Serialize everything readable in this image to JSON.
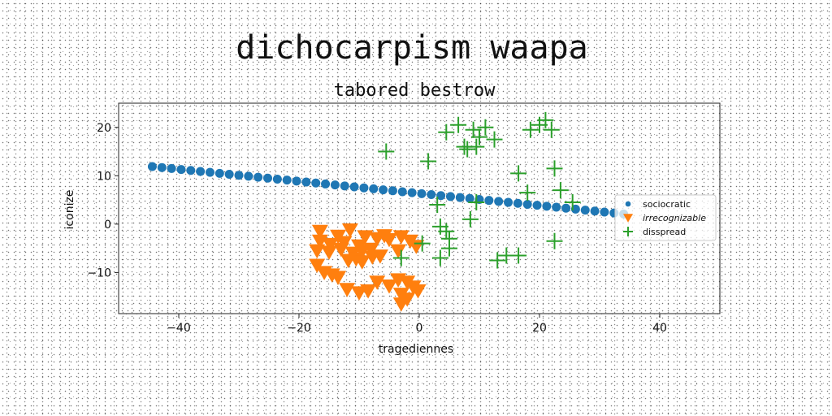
{
  "chart_data": {
    "type": "scatter",
    "title": "dichocarpism waapa",
    "subtitle": "tabored bestrow",
    "xlabel": "tragediennes",
    "ylabel": "iconize",
    "xlim": [
      -50,
      50
    ],
    "ylim": [
      -18.5,
      25
    ],
    "xticks": [
      -40,
      -20,
      0,
      20,
      40
    ],
    "yticks": [
      -10,
      0,
      10,
      20
    ],
    "grid": false,
    "legend_position": "center-right",
    "series": [
      {
        "name": "sociocratic",
        "marker": "circle",
        "color": "#1f77b4",
        "points": [
          [
            -44.4,
            11.9
          ],
          [
            -42.8,
            11.7
          ],
          [
            -41.2,
            11.5
          ],
          [
            -39.6,
            11.3
          ],
          [
            -38.0,
            11.1
          ],
          [
            -36.4,
            10.9
          ],
          [
            -34.8,
            10.7
          ],
          [
            -33.2,
            10.5
          ],
          [
            -31.6,
            10.3
          ],
          [
            -30.0,
            10.1
          ],
          [
            -28.4,
            9.9
          ],
          [
            -26.8,
            9.7
          ],
          [
            -25.2,
            9.5
          ],
          [
            -23.6,
            9.3
          ],
          [
            -22.0,
            9.1
          ],
          [
            -20.4,
            8.9
          ],
          [
            -18.8,
            8.7
          ],
          [
            -17.2,
            8.5
          ],
          [
            -15.6,
            8.3
          ],
          [
            -14.0,
            8.1
          ],
          [
            -12.4,
            7.9
          ],
          [
            -10.8,
            7.7
          ],
          [
            -9.2,
            7.5
          ],
          [
            -7.6,
            7.3
          ],
          [
            -6.0,
            7.1
          ],
          [
            -4.4,
            6.9
          ],
          [
            -2.8,
            6.7
          ],
          [
            -1.2,
            6.5
          ],
          [
            0.4,
            6.3
          ],
          [
            2.0,
            6.1
          ],
          [
            3.6,
            5.9
          ],
          [
            5.2,
            5.7
          ],
          [
            6.8,
            5.5
          ],
          [
            8.4,
            5.3
          ],
          [
            10.0,
            5.1
          ],
          [
            11.6,
            4.9
          ],
          [
            13.2,
            4.7
          ],
          [
            14.8,
            4.5
          ],
          [
            16.4,
            4.3
          ],
          [
            18.0,
            4.1
          ],
          [
            19.6,
            3.9
          ],
          [
            21.2,
            3.7
          ],
          [
            22.8,
            3.5
          ],
          [
            24.4,
            3.3
          ],
          [
            26.0,
            3.1
          ],
          [
            27.6,
            2.9
          ],
          [
            29.2,
            2.7
          ],
          [
            30.8,
            2.5
          ],
          [
            32.4,
            2.3
          ],
          [
            34.0,
            2.1
          ]
        ]
      },
      {
        "name": "irrecognizable",
        "marker": "triangle-down",
        "color": "#ff7f0e",
        "points": [
          [
            -16.5,
            -1.5
          ],
          [
            -13.5,
            -2.5
          ],
          [
            -11.5,
            -1.2
          ],
          [
            -16.5,
            -3.5
          ],
          [
            -14.8,
            -4.2
          ],
          [
            -12.5,
            -3.8
          ],
          [
            -10.0,
            -4.5
          ],
          [
            -9.0,
            -2.6
          ],
          [
            -7.0,
            -3.0
          ],
          [
            -5.8,
            -2.4
          ],
          [
            -5.0,
            -3.2
          ],
          [
            -3.0,
            -2.6
          ],
          [
            -1.5,
            -3.5
          ],
          [
            -0.5,
            -4.6
          ],
          [
            -17.0,
            -5.5
          ],
          [
            -15.0,
            -5.8
          ],
          [
            -13.0,
            -5.2
          ],
          [
            -11.0,
            -6.0
          ],
          [
            -9.5,
            -5.6
          ],
          [
            -8.0,
            -5.2
          ],
          [
            -6.5,
            -6.6
          ],
          [
            -3.5,
            -5.5
          ],
          [
            -17.0,
            -8.5
          ],
          [
            -15.8,
            -10.0
          ],
          [
            -14.5,
            -10.5
          ],
          [
            -13.5,
            -11.0
          ],
          [
            -11.8,
            -7.5
          ],
          [
            -10.5,
            -7.2
          ],
          [
            -9.5,
            -7.8
          ],
          [
            -7.8,
            -6.8
          ],
          [
            -12.0,
            -13.5
          ],
          [
            -10.0,
            -14.2
          ],
          [
            -8.5,
            -13.8
          ],
          [
            -7.0,
            -12.0
          ],
          [
            -5.0,
            -12.8
          ],
          [
            -3.5,
            -11.5
          ],
          [
            -2.0,
            -12.0
          ],
          [
            -1.0,
            -13.0
          ],
          [
            -0.2,
            -13.8
          ],
          [
            -3.0,
            -14.5
          ],
          [
            -2.0,
            -15.5
          ],
          [
            -3.0,
            -16.5
          ]
        ]
      },
      {
        "name": "disspread",
        "marker": "plus",
        "color": "#2ca02c",
        "points": [
          [
            -5.5,
            15.0
          ],
          [
            1.5,
            13.0
          ],
          [
            4.5,
            19.0
          ],
          [
            6.5,
            20.5
          ],
          [
            7.5,
            16.0
          ],
          [
            9.0,
            19.5
          ],
          [
            10.0,
            18.0
          ],
          [
            11.0,
            20.0
          ],
          [
            12.5,
            17.5
          ],
          [
            9.5,
            16.0
          ],
          [
            8.0,
            15.5
          ],
          [
            18.5,
            19.5
          ],
          [
            20.0,
            20.5
          ],
          [
            21.0,
            21.5
          ],
          [
            22.0,
            19.5
          ],
          [
            16.5,
            10.5
          ],
          [
            22.5,
            11.5
          ],
          [
            18.0,
            6.5
          ],
          [
            23.5,
            7.0
          ],
          [
            25.5,
            4.5
          ],
          [
            9.5,
            4.5
          ],
          [
            3.0,
            4.0
          ],
          [
            8.5,
            1.0
          ],
          [
            3.5,
            -0.5
          ],
          [
            4.5,
            -1.5
          ],
          [
            5.0,
            -3.0
          ],
          [
            5.0,
            -5.0
          ],
          [
            3.5,
            -7.0
          ],
          [
            0.5,
            -4.0
          ],
          [
            -3.0,
            -7.0
          ],
          [
            13.0,
            -7.5
          ],
          [
            14.5,
            -6.5
          ],
          [
            16.5,
            -6.5
          ],
          [
            22.5,
            -3.5
          ]
        ]
      }
    ]
  }
}
